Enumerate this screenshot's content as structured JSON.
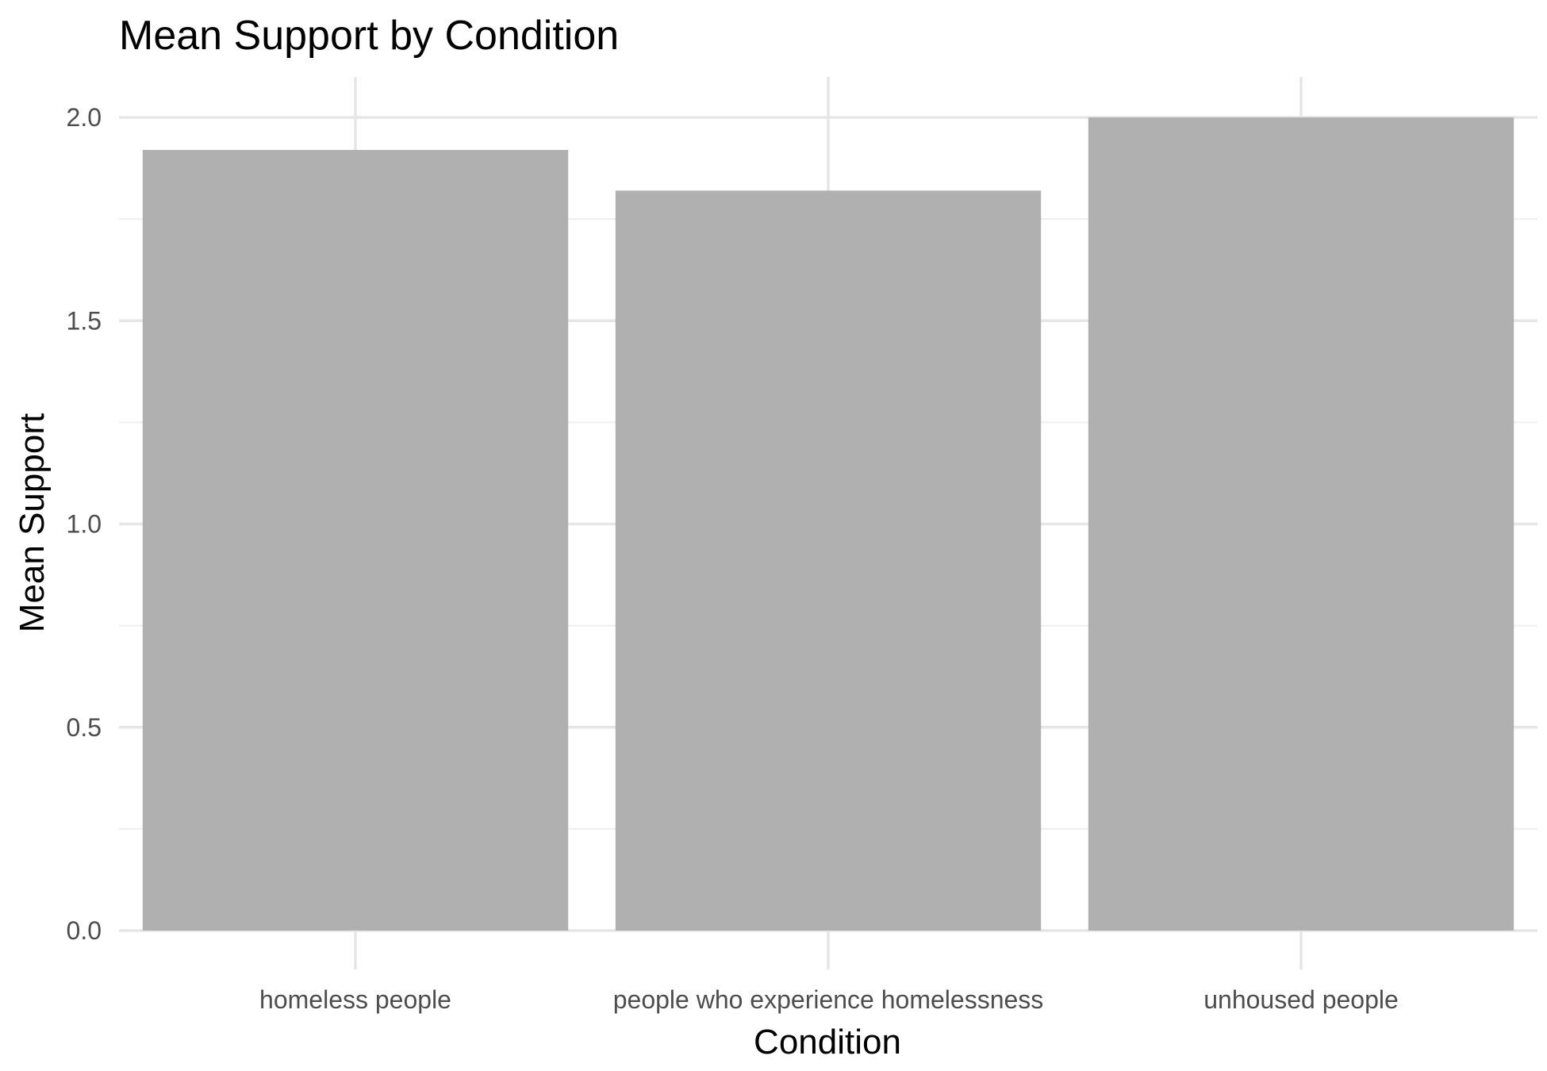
{
  "chart_data": {
    "type": "bar",
    "title": "Mean Support by Condition",
    "xlabel": "Condition",
    "ylabel": "Mean Support",
    "categories": [
      "homeless people",
      "people who experience homelessness",
      "unhoused people"
    ],
    "values": [
      1.92,
      1.82,
      2.0
    ],
    "ylim": [
      0,
      2.1
    ],
    "yticks": [
      "0.0",
      "0.5",
      "1.0",
      "1.5",
      "2.0"
    ],
    "grid": true,
    "legend": "none"
  },
  "colors": {
    "bar": "#b0b0b0",
    "grid_major": "#e6e6e6",
    "grid_minor": "#efefef",
    "tick_text": "#4d4d4d",
    "text": "#000000",
    "background": "#ffffff"
  }
}
